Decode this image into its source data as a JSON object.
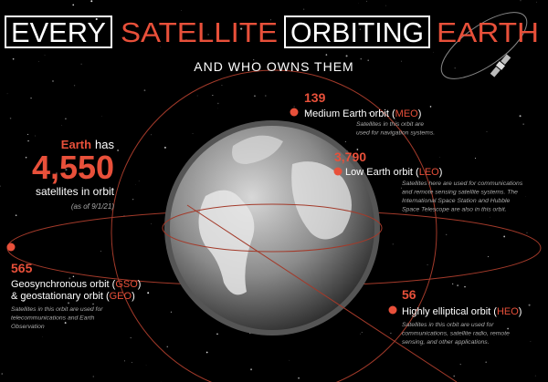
{
  "title": {
    "parts": [
      "EVERY",
      "SATELLITE",
      "ORBITING",
      "EARTH"
    ],
    "subtitle": "AND WHO OWNS THEM"
  },
  "total": {
    "subject": "Earth",
    "verb": "has",
    "count": "4,550",
    "label": "satellites in orbit",
    "as_of": "(as of 9/1/21)"
  },
  "orbits": [
    {
      "count": "139",
      "label_lines": [
        [
          "Medium Earth orbit (",
          "MEO",
          ")"
        ]
      ],
      "description": [
        "Satellites in this orbit are",
        "used for navigation systems."
      ]
    },
    {
      "count": "3,790",
      "label_lines": [
        [
          "Low Earth orbit (",
          "LEO",
          ")"
        ]
      ],
      "description": [
        "Satellites here are used for communications",
        "and remote sensing satellite systems. The",
        "International Space Station and Hubble",
        "Space Telescope are also in this orbit."
      ]
    },
    {
      "count": "565",
      "label_lines": [
        [
          "Geosynchronous orbit (",
          "GSO",
          ")"
        ],
        [
          "& geostationary orbit (",
          "GEO",
          ")"
        ]
      ],
      "description": [
        "Satellites in this orbit are used for",
        "telecommunications and Earth",
        "Observation"
      ]
    },
    {
      "count": "56",
      "label_lines": [
        [
          "Highly elliptical orbit (",
          "HEO",
          ")"
        ]
      ],
      "description": [
        "Satellites in this orbit are used for",
        "communications, satellite radio, remote",
        "sensing, and other applications."
      ]
    }
  ]
}
